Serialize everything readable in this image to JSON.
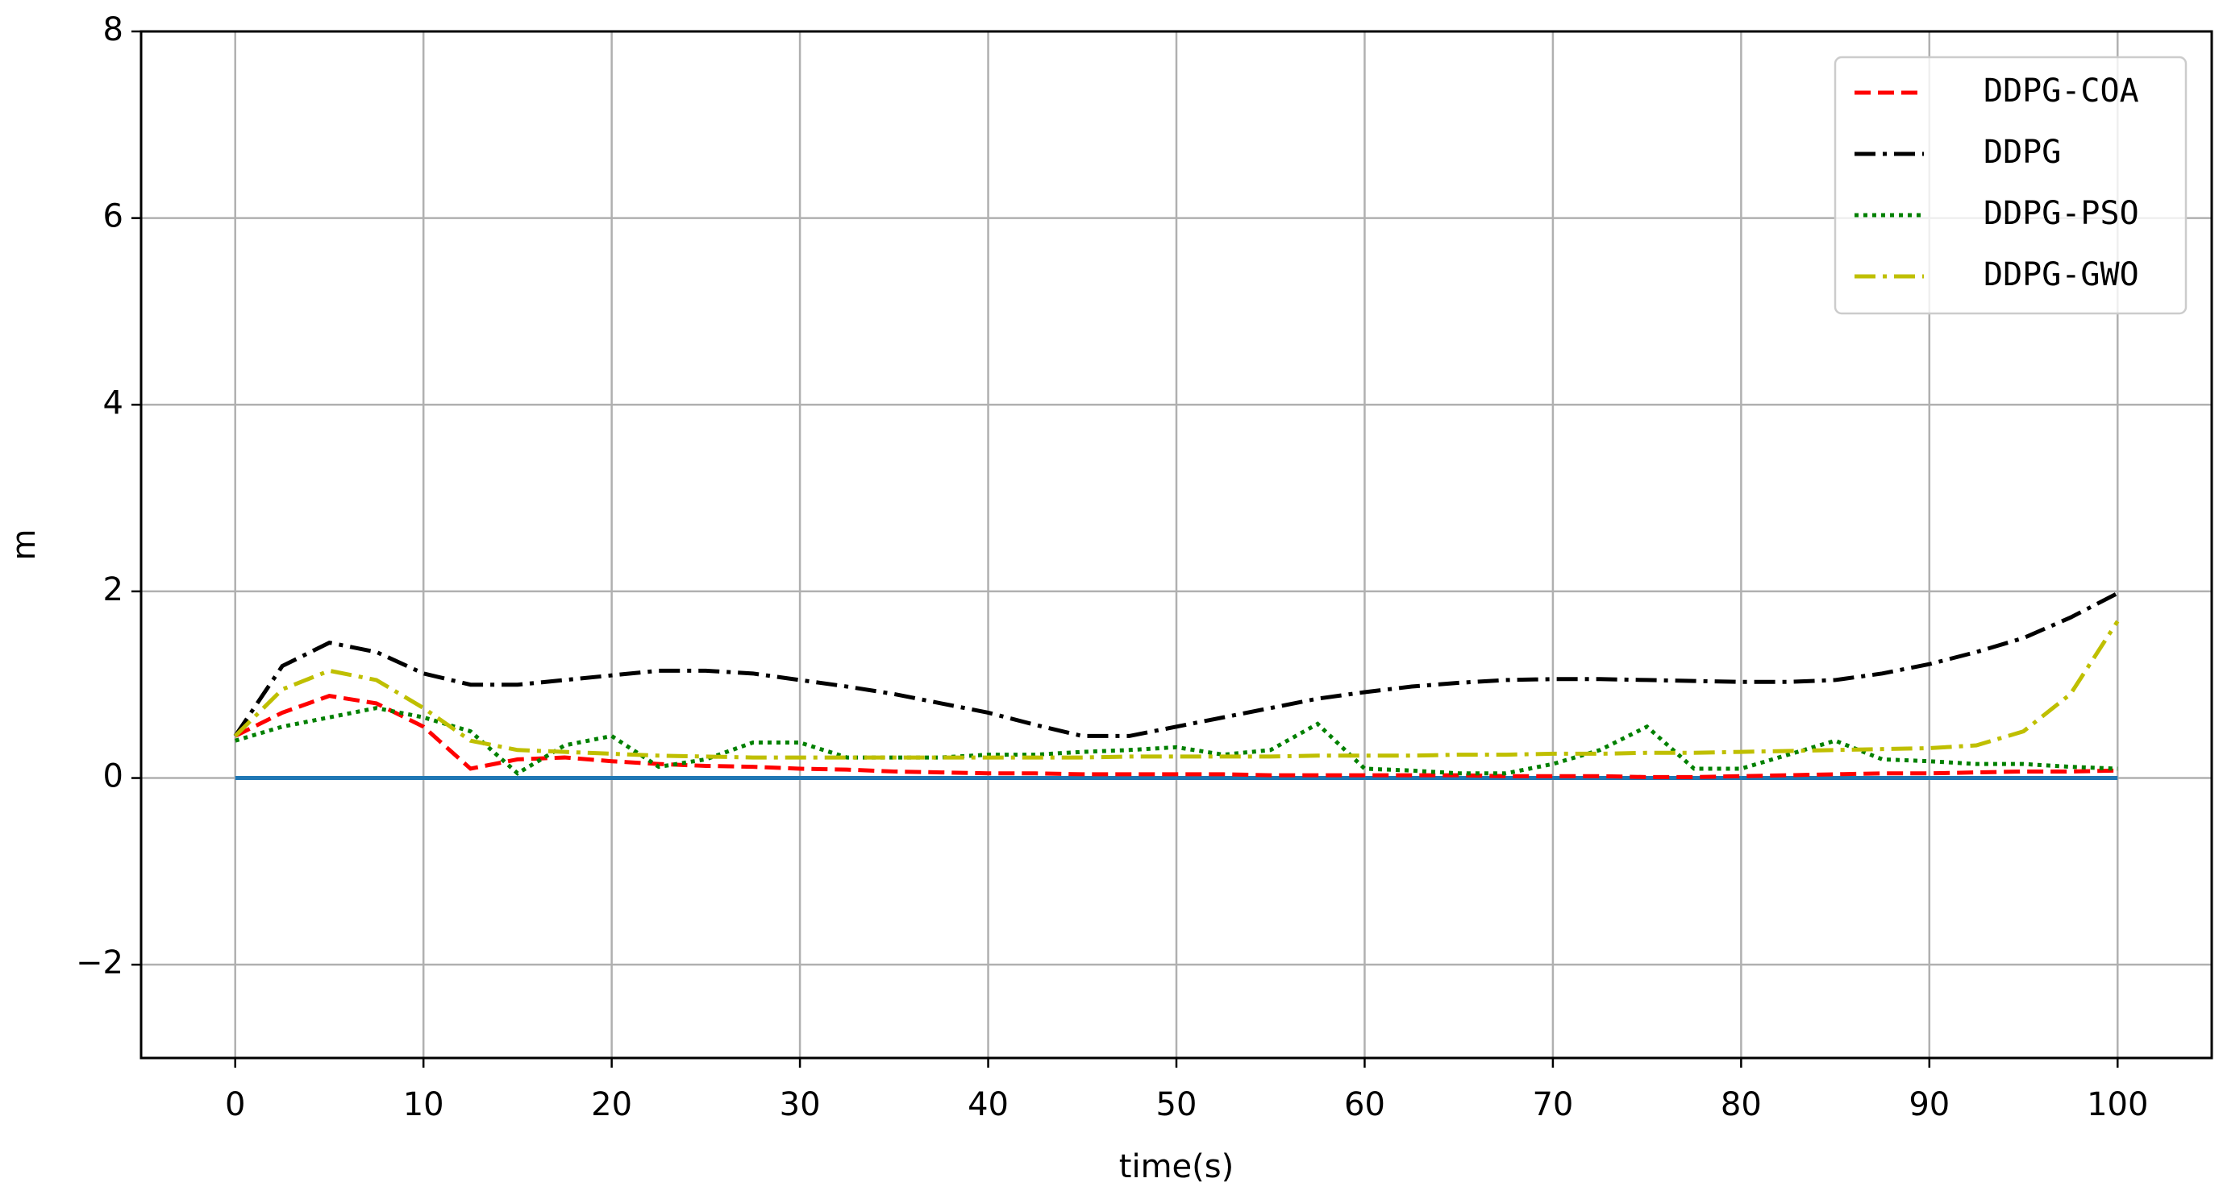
{
  "chart_data": {
    "type": "line",
    "xlabel": "time(s)",
    "ylabel": "m",
    "x": [
      0,
      2.5,
      5,
      7.5,
      10,
      12.5,
      15,
      17.5,
      20,
      22.5,
      25,
      27.5,
      30,
      32.5,
      35,
      37.5,
      40,
      42.5,
      45,
      47.5,
      50,
      52.5,
      55,
      57.5,
      60,
      62.5,
      65,
      67.5,
      70,
      72.5,
      75,
      77.5,
      80,
      82.5,
      85,
      87.5,
      90,
      92.5,
      95,
      97.5,
      100
    ],
    "series": [
      {
        "name": "DDPG-COA",
        "color": "#ff0000",
        "linestyle": "dashed",
        "values": [
          0.45,
          0.7,
          0.88,
          0.8,
          0.55,
          0.1,
          0.2,
          0.22,
          0.18,
          0.15,
          0.13,
          0.12,
          0.1,
          0.09,
          0.07,
          0.06,
          0.05,
          0.05,
          0.04,
          0.04,
          0.04,
          0.04,
          0.03,
          0.03,
          0.03,
          0.03,
          0.03,
          0.02,
          0.02,
          0.02,
          0.01,
          0.01,
          0.02,
          0.03,
          0.04,
          0.05,
          0.05,
          0.06,
          0.07,
          0.07,
          0.08
        ]
      },
      {
        "name": "DDPG",
        "color": "#000000",
        "linestyle": "dashdot",
        "values": [
          0.45,
          1.2,
          1.45,
          1.35,
          1.12,
          1.0,
          1.0,
          1.05,
          1.1,
          1.15,
          1.15,
          1.12,
          1.05,
          0.98,
          0.9,
          0.8,
          0.7,
          0.57,
          0.45,
          0.45,
          0.55,
          0.65,
          0.75,
          0.85,
          0.92,
          0.98,
          1.02,
          1.05,
          1.06,
          1.06,
          1.05,
          1.04,
          1.03,
          1.03,
          1.05,
          1.12,
          1.22,
          1.35,
          1.5,
          1.72,
          1.98
        ]
      },
      {
        "name": "DDPG-PSO",
        "color": "#008000",
        "linestyle": "dotted",
        "values": [
          0.4,
          0.55,
          0.65,
          0.75,
          0.65,
          0.5,
          0.05,
          0.35,
          0.45,
          0.12,
          0.2,
          0.38,
          0.38,
          0.22,
          0.22,
          0.22,
          0.25,
          0.25,
          0.28,
          0.3,
          0.33,
          0.25,
          0.3,
          0.58,
          0.1,
          0.08,
          0.05,
          0.05,
          0.15,
          0.3,
          0.55,
          0.1,
          0.1,
          0.25,
          0.4,
          0.2,
          0.18,
          0.15,
          0.15,
          0.12,
          0.1
        ]
      },
      {
        "name": "DDPG-GWO",
        "color": "#bfbf00",
        "linestyle": "dashdot",
        "values": [
          0.45,
          0.95,
          1.15,
          1.05,
          0.75,
          0.4,
          0.3,
          0.28,
          0.26,
          0.24,
          0.23,
          0.22,
          0.22,
          0.22,
          0.22,
          0.22,
          0.22,
          0.22,
          0.22,
          0.23,
          0.23,
          0.23,
          0.23,
          0.24,
          0.24,
          0.24,
          0.25,
          0.25,
          0.26,
          0.26,
          0.27,
          0.27,
          0.28,
          0.29,
          0.3,
          0.31,
          0.32,
          0.35,
          0.5,
          0.9,
          1.68
        ]
      },
      {
        "color": "#1f77b4",
        "linestyle": "solid",
        "values": [
          0,
          0,
          0,
          0,
          0,
          0,
          0,
          0,
          0,
          0,
          0,
          0,
          0,
          0,
          0,
          0,
          0,
          0,
          0,
          0,
          0,
          0,
          0,
          0,
          0,
          0,
          0,
          0,
          0,
          0,
          0,
          0,
          0,
          0,
          0,
          0,
          0,
          0,
          0,
          0,
          0
        ]
      }
    ],
    "xlim": [
      -5,
      105
    ],
    "ylim": [
      -3,
      8
    ],
    "xticks": [
      0,
      10,
      20,
      30,
      40,
      50,
      60,
      70,
      80,
      90,
      100
    ],
    "yticks": [
      {
        "value": -2,
        "label": "−2"
      },
      0,
      2,
      4,
      6,
      8
    ],
    "grid": true,
    "legend": "upper right"
  }
}
